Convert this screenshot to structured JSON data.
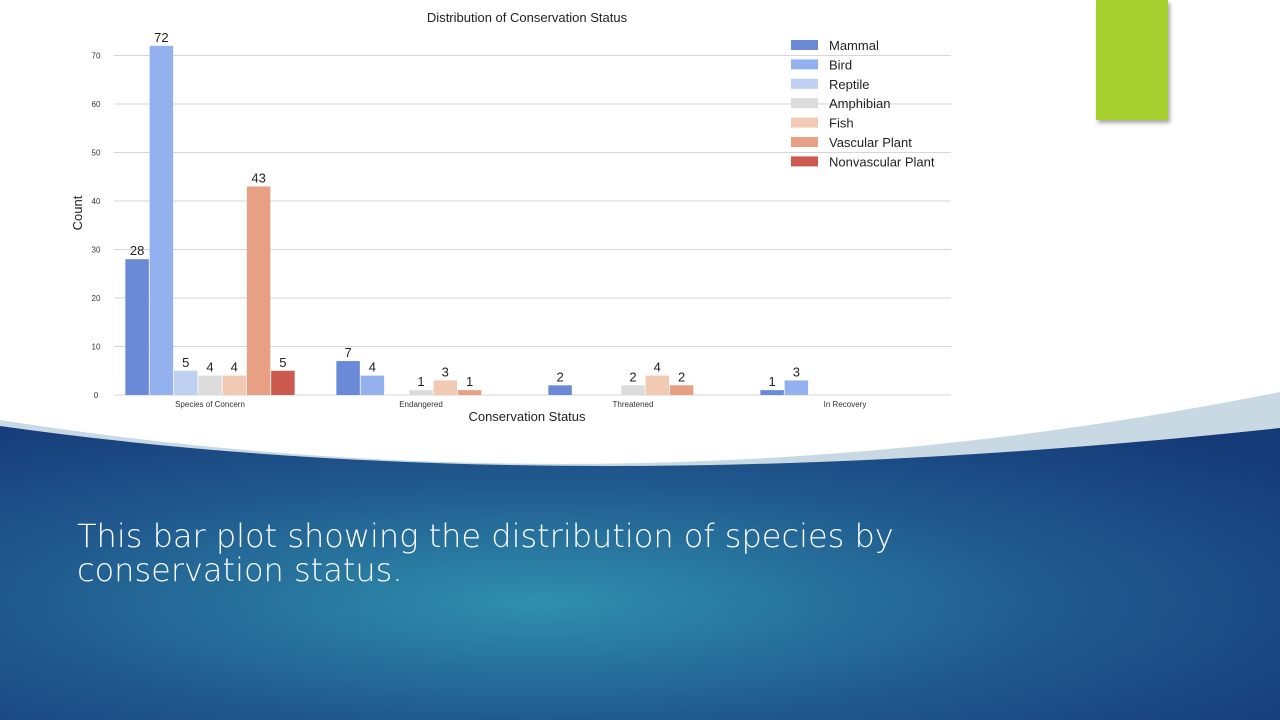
{
  "slide": {
    "caption": "This bar plot showing the distribution of species by conservation status.",
    "accent_color": "#a6d02f",
    "background_colors": [
      "#1a3f7a",
      "#2f8fae",
      "#c9d9e3"
    ]
  },
  "chart_data": {
    "type": "bar",
    "title": "Distribution of Conservation Status",
    "xlabel": "Conservation Status",
    "ylabel": "Count",
    "ylim": [
      0,
      75
    ],
    "yticks": [
      0,
      10,
      20,
      30,
      40,
      50,
      60,
      70
    ],
    "grid": true,
    "legend_position": "top-right",
    "categories": [
      "Species of Concern",
      "Endangered",
      "Threatened",
      "In Recovery"
    ],
    "series": [
      {
        "name": "Mammal",
        "color": "#6a8ad8",
        "values": [
          28,
          7,
          2,
          1
        ]
      },
      {
        "name": "Bird",
        "color": "#93b1ef",
        "values": [
          72,
          4,
          null,
          3
        ]
      },
      {
        "name": "Reptile",
        "color": "#bed0f2",
        "values": [
          5,
          null,
          null,
          null
        ]
      },
      {
        "name": "Amphibian",
        "color": "#dcdcdc",
        "values": [
          4,
          1,
          2,
          null
        ]
      },
      {
        "name": "Fish",
        "color": "#f2c9b3",
        "values": [
          4,
          3,
          4,
          null
        ]
      },
      {
        "name": "Vascular Plant",
        "color": "#e8a085",
        "values": [
          43,
          1,
          2,
          null
        ]
      },
      {
        "name": "Nonvascular Plant",
        "color": "#cd5a4e",
        "values": [
          5,
          null,
          null,
          null
        ]
      }
    ]
  }
}
